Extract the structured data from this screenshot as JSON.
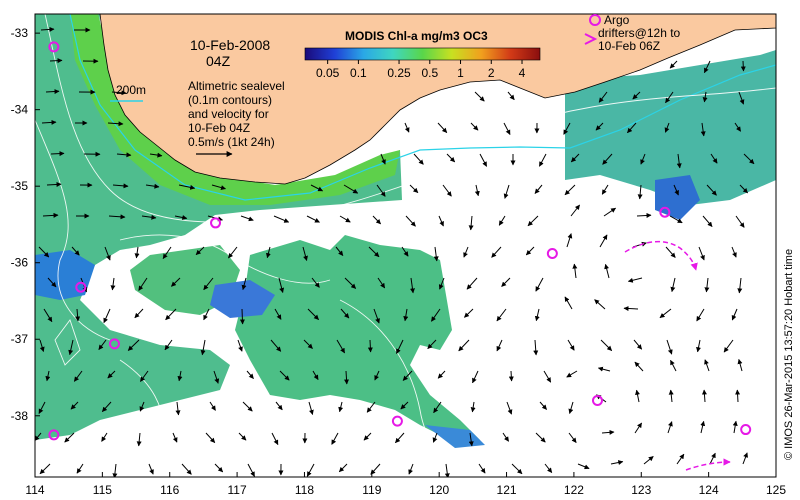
{
  "map": {
    "date_label": "10-Feb-2008",
    "time_label": "04Z",
    "contour_legend_label": "200m",
    "description_lines": [
      "Altimetric sealevel",
      "(0.1m contours)",
      "and velocity for",
      "10-Feb 04Z"
    ],
    "velocity_scale_label": "0.5m/s (1kt 24h)",
    "argo_lines": [
      "Argo",
      "drifters@12h to",
      "10-Feb 06Z"
    ],
    "credit": "© IMOS 26-Mar-2015 13:57:20 Hobart time",
    "colors": {
      "land": "#fac9a0",
      "cloud": "#ffffff",
      "shelf": "#56c84a",
      "offshore": "#48b896",
      "contour": "#ffffff",
      "isobath": "#2bd3e8",
      "argo": "#e619e6"
    }
  },
  "colorbar": {
    "title": "MODIS Chl-a mg/m3 OC3",
    "tick_labels": [
      "0.05",
      "0.1",
      "0.25",
      "0.5",
      "1",
      "2",
      "4"
    ],
    "tick_values": [
      0.05,
      0.1,
      0.25,
      0.5,
      1,
      2,
      4
    ],
    "range": [
      0.03,
      6
    ],
    "stops": [
      "#1a0a7a",
      "#1f3fd6",
      "#2aa8e6",
      "#3fd6c0",
      "#59d64a",
      "#c8e021",
      "#f0a01e",
      "#d23a17",
      "#8a0e0e"
    ]
  },
  "axes": {
    "lon_ticks": [
      "114",
      "115",
      "116",
      "117",
      "118",
      "119",
      "120",
      "121",
      "122",
      "123",
      "124",
      "125"
    ],
    "lon_values": [
      114,
      115,
      116,
      117,
      118,
      119,
      120,
      121,
      122,
      123,
      124,
      125
    ],
    "lat_ticks": [
      "-33",
      "-34",
      "-35",
      "-36",
      "-37",
      "-38"
    ],
    "lat_values": [
      -33,
      -34,
      -35,
      -36,
      -37,
      -38
    ],
    "lon_range": [
      114,
      125
    ],
    "lat_range": [
      -38.8,
      -32.75
    ]
  },
  "argo_floats": [
    {
      "lon": 114.28,
      "lat": -33.18
    },
    {
      "lon": 114.68,
      "lat": -36.32
    },
    {
      "lon": 115.18,
      "lat": -37.06
    },
    {
      "lon": 116.68,
      "lat": -35.48
    },
    {
      "lon": 114.28,
      "lat": -38.25
    },
    {
      "lon": 119.38,
      "lat": -38.07
    },
    {
      "lon": 121.68,
      "lat": -35.88
    },
    {
      "lon": 122.35,
      "lat": -37.8
    },
    {
      "lon": 123.35,
      "lat": -35.34
    },
    {
      "lon": 124.55,
      "lat": -38.18
    }
  ]
}
